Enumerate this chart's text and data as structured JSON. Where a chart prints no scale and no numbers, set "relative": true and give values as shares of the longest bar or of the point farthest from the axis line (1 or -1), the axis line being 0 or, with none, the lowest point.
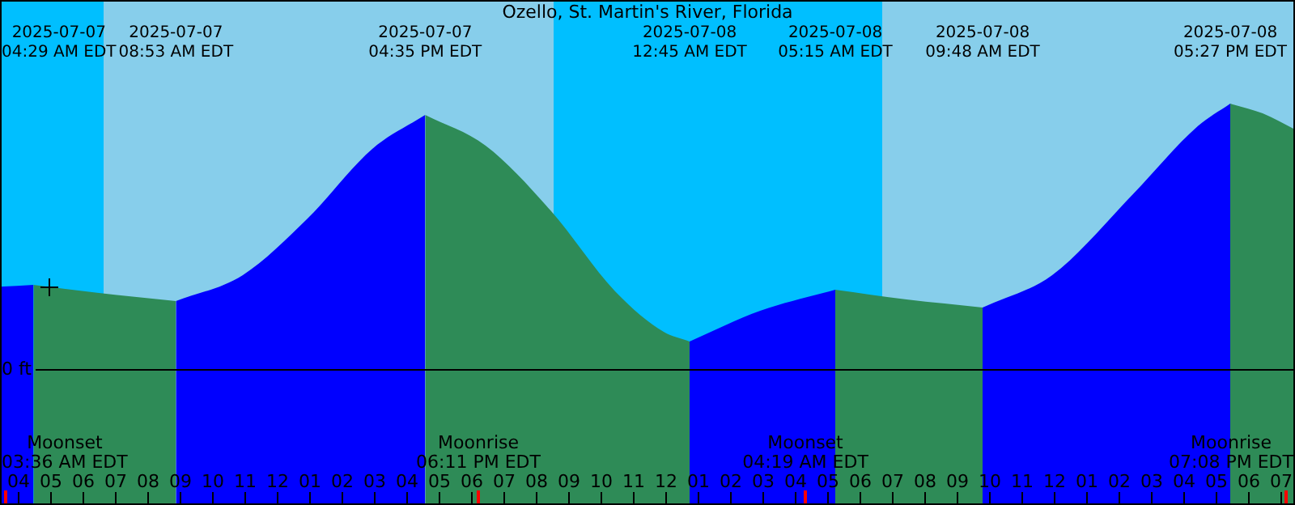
{
  "chart_data": {
    "type": "area",
    "relative": true,
    "title": "Ozello, St. Martin's River, Florida",
    "legend": false,
    "xlim": [
      "2025-07-07T03:27",
      "2025-07-08T19:27"
    ],
    "xticks": [
      {
        "value": "2025-07-07T04:00",
        "label": "04"
      },
      {
        "value": "2025-07-07T05:00",
        "label": "05"
      },
      {
        "value": "2025-07-07T06:00",
        "label": "06"
      },
      {
        "value": "2025-07-07T07:00",
        "label": "07"
      },
      {
        "value": "2025-07-07T08:00",
        "label": "08"
      },
      {
        "value": "2025-07-07T09:00",
        "label": "09"
      },
      {
        "value": "2025-07-07T10:00",
        "label": "10"
      },
      {
        "value": "2025-07-07T11:00",
        "label": "11"
      },
      {
        "value": "2025-07-07T12:00",
        "label": "12"
      },
      {
        "value": "2025-07-07T13:00",
        "label": "01"
      },
      {
        "value": "2025-07-07T14:00",
        "label": "02"
      },
      {
        "value": "2025-07-07T15:00",
        "label": "03"
      },
      {
        "value": "2025-07-07T16:00",
        "label": "04"
      },
      {
        "value": "2025-07-07T17:00",
        "label": "05"
      },
      {
        "value": "2025-07-07T18:00",
        "label": "06"
      },
      {
        "value": "2025-07-07T19:00",
        "label": "07"
      },
      {
        "value": "2025-07-07T20:00",
        "label": "08"
      },
      {
        "value": "2025-07-07T21:00",
        "label": "09"
      },
      {
        "value": "2025-07-07T22:00",
        "label": "10"
      },
      {
        "value": "2025-07-07T23:00",
        "label": "11"
      },
      {
        "value": "2025-07-08T00:00",
        "label": "12"
      },
      {
        "value": "2025-07-08T01:00",
        "label": "01"
      },
      {
        "value": "2025-07-08T02:00",
        "label": "02"
      },
      {
        "value": "2025-07-08T03:00",
        "label": "03"
      },
      {
        "value": "2025-07-08T04:00",
        "label": "04"
      },
      {
        "value": "2025-07-08T05:00",
        "label": "05"
      },
      {
        "value": "2025-07-08T06:00",
        "label": "06"
      },
      {
        "value": "2025-07-08T07:00",
        "label": "07"
      },
      {
        "value": "2025-07-08T08:00",
        "label": "08"
      },
      {
        "value": "2025-07-08T09:00",
        "label": "09"
      },
      {
        "value": "2025-07-08T10:00",
        "label": "10"
      },
      {
        "value": "2025-07-08T11:00",
        "label": "11"
      },
      {
        "value": "2025-07-08T12:00",
        "label": "12"
      },
      {
        "value": "2025-07-08T13:00",
        "label": "01"
      },
      {
        "value": "2025-07-08T14:00",
        "label": "02"
      },
      {
        "value": "2025-07-08T15:00",
        "label": "03"
      },
      {
        "value": "2025-07-08T16:00",
        "label": "04"
      },
      {
        "value": "2025-07-08T17:00",
        "label": "05"
      },
      {
        "value": "2025-07-08T18:00",
        "label": "06"
      },
      {
        "value": "2025-07-08T19:00",
        "label": "07"
      }
    ],
    "series": [
      {
        "color": "#0000ff",
        "x": [
          "2025-07-07T03:27",
          "2025-07-07T04:29"
        ],
        "values": [
          0.31,
          0.317
        ]
      },
      {
        "color": "#2e8b57",
        "x": [
          "2025-07-07T04:29",
          "2025-07-07T06:27",
          "2025-07-07T08:53"
        ],
        "values": [
          0.317,
          0.287,
          0.256
        ]
      },
      {
        "color": "#0000ff",
        "x": [
          "2025-07-07T08:53",
          "2025-07-07T10:57",
          "2025-07-07T12:57",
          "2025-07-07T14:57",
          "2025-07-07T16:35"
        ],
        "values": [
          0.256,
          0.354,
          0.567,
          0.829,
          0.957
        ]
      },
      {
        "color": "#2e8b57",
        "x": [
          "2025-07-07T16:35",
          "2025-07-07T18:27",
          "2025-07-07T20:27",
          "2025-07-07T22:27",
          "2025-07-07T23:57",
          "2025-07-08T00:45"
        ],
        "values": [
          0.957,
          0.841,
          0.598,
          0.293,
          0.14,
          0.104
        ]
      },
      {
        "color": "#0000ff",
        "x": [
          "2025-07-08T00:45",
          "2025-07-08T02:57",
          "2025-07-08T05:15"
        ],
        "values": [
          0.104,
          0.22,
          0.299
        ]
      },
      {
        "color": "#2e8b57",
        "x": [
          "2025-07-08T05:15",
          "2025-07-08T07:27",
          "2025-07-08T09:48"
        ],
        "values": [
          0.299,
          0.262,
          0.232
        ]
      },
      {
        "color": "#0000ff",
        "x": [
          "2025-07-08T09:48",
          "2025-07-08T11:57",
          "2025-07-08T14:27",
          "2025-07-08T16:27",
          "2025-07-08T17:27"
        ],
        "values": [
          0.232,
          0.354,
          0.659,
          0.915,
          1.0
        ]
      },
      {
        "color": "#2e8b57",
        "x": [
          "2025-07-08T17:27",
          "2025-07-08T18:27",
          "2025-07-08T19:27"
        ],
        "values": [
          1.0,
          0.963,
          0.902
        ]
      }
    ],
    "bands": [
      {
        "axis": "x",
        "from": "2025-07-07T03:27",
        "to": "2025-07-07T06:39",
        "color": "#00bfff"
      },
      {
        "axis": "x",
        "from": "2025-07-07T06:39",
        "to": "2025-07-07T20:33",
        "color": "#87ceeb"
      },
      {
        "axis": "x",
        "from": "2025-07-07T20:33",
        "to": "2025-07-08T06:42",
        "color": "#00bfff"
      },
      {
        "axis": "x",
        "from": "2025-07-08T06:42",
        "to": "2025-07-08T19:27",
        "color": "#87ceeb"
      }
    ],
    "ref_lines": [
      {
        "axis": "y",
        "value": 0,
        "label": "0 ft",
        "color": "#000000"
      },
      {
        "axis": "x",
        "value": "2025-07-07T03:36",
        "label": "Moonset\n03:36 AM EDT",
        "color": "#ff0000"
      },
      {
        "axis": "x",
        "value": "2025-07-07T18:11",
        "label": "Moonrise\n06:11 PM EDT",
        "color": "#ff0000"
      },
      {
        "axis": "x",
        "value": "2025-07-08T04:19",
        "label": "Moonset\n04:19 AM EDT",
        "color": "#ff0000"
      },
      {
        "axis": "x",
        "value": "2025-07-08T19:08",
        "label": "Moonrise\n07:08 PM EDT",
        "color": "#ff0000"
      }
    ],
    "annotations": [
      "2025-07-07\n04:29 AM EDT",
      "2025-07-07\n08:53 AM EDT",
      "2025-07-07\n04:35 PM EDT",
      "2025-07-08\n12:45 AM EDT",
      "2025-07-08\n05:15 AM EDT",
      "2025-07-08\n09:48 AM EDT",
      "2025-07-08\n05:27 PM EDT"
    ]
  }
}
